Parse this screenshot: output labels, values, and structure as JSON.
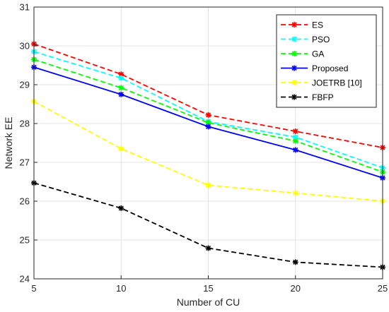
{
  "chart_data": {
    "type": "line",
    "title": "",
    "xlabel": "Number of CU",
    "ylabel": "Network EE",
    "x": [
      5,
      10,
      15,
      20,
      25
    ],
    "xlim": [
      5,
      25
    ],
    "ylim": [
      24,
      31
    ],
    "xticks": [
      "5",
      "10",
      "15",
      "20",
      "25"
    ],
    "yticks": [
      "24",
      "25",
      "26",
      "27",
      "28",
      "29",
      "30",
      "31"
    ],
    "grid": true,
    "legend_position": "top-right",
    "series": [
      {
        "name": "ES",
        "values": [
          30.05,
          29.27,
          28.22,
          27.8,
          27.38
        ],
        "color": "#ff0000",
        "dash": "dashed",
        "marker": "star"
      },
      {
        "name": "PSO",
        "values": [
          29.85,
          29.17,
          28.05,
          27.65,
          26.86
        ],
        "color": "#00ffff",
        "dash": "dashed",
        "marker": "star"
      },
      {
        "name": "GA",
        "values": [
          29.65,
          28.92,
          28.02,
          27.55,
          26.75
        ],
        "color": "#00ff00",
        "dash": "dashed",
        "marker": "star"
      },
      {
        "name": "Proposed",
        "values": [
          29.45,
          28.75,
          27.92,
          27.32,
          26.6
        ],
        "color": "#0000ff",
        "dash": "solid",
        "marker": "star"
      },
      {
        "name": "JOETRB [10]",
        "values": [
          28.57,
          27.35,
          26.41,
          26.21,
          26.0
        ],
        "color": "#ffff00",
        "dash": "dashed",
        "marker": "star"
      },
      {
        "name": "FBFP",
        "values": [
          26.47,
          25.82,
          24.79,
          24.43,
          24.3
        ],
        "color": "#000000",
        "dash": "dashed",
        "marker": "star"
      }
    ]
  }
}
